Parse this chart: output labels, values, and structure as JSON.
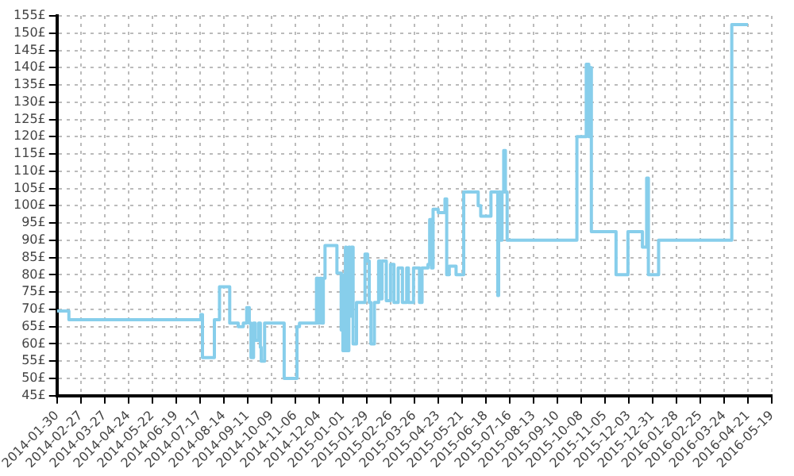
{
  "chart_data": {
    "type": "step",
    "x": [
      "2014-01-30",
      "2014-02-13",
      "2014-07-18",
      "2014-07-20",
      "2014-08-03",
      "2014-08-09",
      "2014-08-21",
      "2014-08-31",
      "2014-09-06",
      "2014-09-10",
      "2014-09-13",
      "2014-09-15",
      "2014-09-18",
      "2014-09-20",
      "2014-09-24",
      "2014-09-26",
      "2014-09-27",
      "2014-10-01",
      "2014-10-24",
      "2014-11-08",
      "2014-11-11",
      "2014-12-01",
      "2014-12-03",
      "2014-12-05",
      "2014-12-07",
      "2014-12-09",
      "2014-12-11",
      "2014-12-25",
      "2014-12-30",
      "2014-12-31",
      "2015-01-01",
      "2015-01-04",
      "2015-01-05",
      "2015-01-08",
      "2015-01-09",
      "2015-01-11",
      "2015-01-13",
      "2015-01-17",
      "2015-01-27",
      "2015-01-30",
      "2015-02-01",
      "2015-02-03",
      "2015-02-07",
      "2015-02-12",
      "2015-02-14",
      "2015-02-16",
      "2015-02-21",
      "2015-02-26",
      "2015-03-02",
      "2015-03-07",
      "2015-03-12",
      "2015-03-17",
      "2015-03-19",
      "2015-03-25",
      "2015-04-01",
      "2015-04-04",
      "2015-04-11",
      "2015-04-13",
      "2015-04-15",
      "2015-04-17",
      "2015-04-23",
      "2015-05-01",
      "2015-05-03",
      "2015-05-06",
      "2015-05-14",
      "2015-05-23",
      "2015-06-09",
      "2015-06-12",
      "2015-06-24",
      "2015-07-02",
      "2015-07-03",
      "2015-07-05",
      "2015-07-07",
      "2015-07-09",
      "2015-07-11",
      "2015-07-13",
      "2015-10-03",
      "2015-10-14",
      "2015-10-17",
      "2015-10-19",
      "2015-10-20",
      "2015-11-18",
      "2015-12-02",
      "2015-12-19",
      "2015-12-24",
      "2015-12-26",
      "2016-01-07",
      "2016-04-02",
      "2016-04-21"
    ],
    "series": [
      {
        "color": "#87ceeb",
        "values": [
          69.5,
          67,
          68.5,
          56,
          67,
          76.5,
          66,
          65,
          66,
          70.5,
          66,
          56,
          66,
          61,
          66,
          59,
          55,
          66,
          50,
          65,
          66,
          79,
          66,
          79,
          66,
          79,
          88.5,
          80.5,
          64,
          80,
          58,
          88,
          58,
          88,
          68,
          88,
          60,
          72,
          86,
          84,
          72,
          60,
          72,
          84,
          73,
          84,
          72.5,
          83,
          72,
          82,
          72,
          82,
          72,
          82,
          72,
          82,
          83,
          96,
          82,
          99,
          98,
          102,
          80,
          82.5,
          80,
          104,
          100,
          97,
          104,
          74,
          104,
          90,
          104,
          116,
          104,
          90,
          120,
          141,
          120,
          140,
          92.5,
          80,
          92.5,
          88,
          108,
          80,
          90,
          152.5,
          152.5
        ]
      }
    ],
    "xlim": [
      "2014-01-30",
      "2016-05-19"
    ],
    "xticks": [
      "2014-01-30",
      "2014-02-27",
      "2014-03-27",
      "2014-04-24",
      "2014-05-22",
      "2014-06-19",
      "2014-07-17",
      "2014-08-14",
      "2014-09-11",
      "2014-10-09",
      "2014-11-06",
      "2014-12-04",
      "2015-01-01",
      "2015-01-29",
      "2015-02-26",
      "2015-03-26",
      "2015-04-23",
      "2015-05-21",
      "2015-06-18",
      "2015-07-16",
      "2015-08-13",
      "2015-09-10",
      "2015-10-08",
      "2015-11-05",
      "2015-12-03",
      "2015-12-31",
      "2016-01-28",
      "2016-02-25",
      "2016-03-24",
      "2016-04-21",
      "2016-05-19"
    ],
    "ylim": [
      45,
      155
    ],
    "yticks": [
      {
        "value": 45,
        "label": "45£"
      },
      {
        "value": 50,
        "label": "50£"
      },
      {
        "value": 55,
        "label": "55£"
      },
      {
        "value": 60,
        "label": "60£"
      },
      {
        "value": 65,
        "label": "65£"
      },
      {
        "value": 70,
        "label": "70£"
      },
      {
        "value": 75,
        "label": "75£"
      },
      {
        "value": 80,
        "label": "80£"
      },
      {
        "value": 85,
        "label": "85£"
      },
      {
        "value": 90,
        "label": "90£"
      },
      {
        "value": 95,
        "label": "95£"
      },
      {
        "value": 100,
        "label": "100£"
      },
      {
        "value": 105,
        "label": "105£"
      },
      {
        "value": 110,
        "label": "110£"
      },
      {
        "value": 115,
        "label": "115£"
      },
      {
        "value": 120,
        "label": "120£"
      },
      {
        "value": 125,
        "label": "125£"
      },
      {
        "value": 130,
        "label": "130£"
      },
      {
        "value": 135,
        "label": "135£"
      },
      {
        "value": 140,
        "label": "140£"
      },
      {
        "value": 145,
        "label": "145£"
      },
      {
        "value": 150,
        "label": "150£"
      },
      {
        "value": 155,
        "label": "155£"
      }
    ],
    "grid": true,
    "legend": false,
    "marker": "none",
    "line_style": "solid"
  }
}
